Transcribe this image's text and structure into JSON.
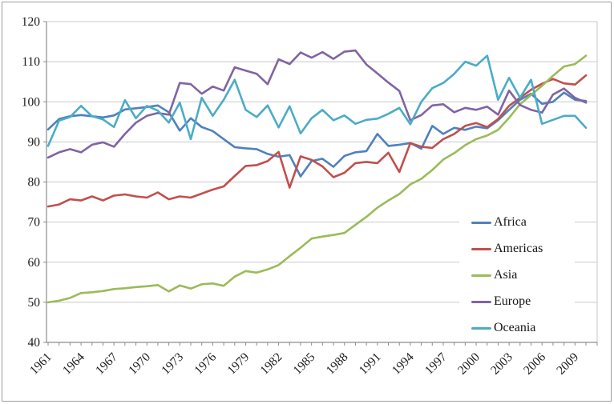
{
  "chart_data": {
    "type": "line",
    "title": "",
    "xlabel": "",
    "ylabel": "",
    "x": [
      1961,
      1962,
      1963,
      1964,
      1965,
      1966,
      1967,
      1968,
      1969,
      1970,
      1971,
      1972,
      1973,
      1974,
      1975,
      1976,
      1977,
      1978,
      1979,
      1980,
      1981,
      1982,
      1983,
      1984,
      1985,
      1986,
      1987,
      1988,
      1989,
      1990,
      1991,
      1992,
      1993,
      1994,
      1995,
      1996,
      1997,
      1998,
      1999,
      2000,
      2001,
      2002,
      2003,
      2004,
      2005,
      2006,
      2007,
      2008,
      2009,
      2010
    ],
    "xtick_labels": [
      "1961",
      "1964",
      "1967",
      "1970",
      "1973",
      "1976",
      "1979",
      "1982",
      "1985",
      "1988",
      "1991",
      "1994",
      "1997",
      "2000",
      "2003",
      "2006",
      "2009"
    ],
    "xtick_interval": 3,
    "ylim": [
      40,
      120
    ],
    "yticks": [
      40,
      50,
      60,
      70,
      80,
      90,
      100,
      110,
      120
    ],
    "grid": "horizontal",
    "legend_position": "inside-right",
    "colors": {
      "axis": "#8c8c8c",
      "grid": "#c9c9c9",
      "text": "#1a1a1a",
      "background": "#ffffff"
    },
    "series": [
      {
        "name": "Africa",
        "color": "#4F81BD",
        "values": [
          93.1,
          95.7,
          96.4,
          96.7,
          96.4,
          96.1,
          96.6,
          98.1,
          98.4,
          98.7,
          99.1,
          97.4,
          92.8,
          95.9,
          93.7,
          92.7,
          90.7,
          88.7,
          88.4,
          88.2,
          87.0,
          86.3,
          86.7,
          81.4,
          85.2,
          85.8,
          83.8,
          86.5,
          87.4,
          87.7,
          92.0,
          89.0,
          89.3,
          89.7,
          88.3,
          94.0,
          92.0,
          93.5,
          93.0,
          93.8,
          93.4,
          95.4,
          98.0,
          100.5,
          102.0,
          99.5,
          100.0,
          102.3,
          100.5,
          100.2
        ]
      },
      {
        "name": "Americas",
        "color": "#C0504D",
        "values": [
          73.9,
          74.4,
          75.7,
          75.4,
          76.4,
          75.4,
          76.6,
          76.9,
          76.4,
          76.1,
          77.4,
          75.7,
          76.4,
          76.1,
          77.1,
          78.1,
          78.9,
          81.5,
          84.0,
          84.2,
          85.2,
          87.5,
          78.6,
          86.4,
          85.5,
          83.9,
          81.2,
          82.3,
          84.7,
          85.0,
          84.7,
          87.3,
          82.5,
          89.7,
          88.8,
          88.5,
          90.7,
          92.0,
          94.0,
          94.7,
          93.7,
          95.7,
          99.0,
          101.0,
          103.0,
          104.5,
          105.7,
          104.6,
          104.3,
          106.6
        ]
      },
      {
        "name": "Asia",
        "color": "#9BBB59",
        "values": [
          50.0,
          50.4,
          51.1,
          52.3,
          52.5,
          52.8,
          53.3,
          53.5,
          53.8,
          54.0,
          54.3,
          52.7,
          54.2,
          53.4,
          54.5,
          54.7,
          54.1,
          56.4,
          57.8,
          57.4,
          58.2,
          59.3,
          61.5,
          63.6,
          65.9,
          66.4,
          66.8,
          67.3,
          69.3,
          71.3,
          73.6,
          75.4,
          77.0,
          79.4,
          80.8,
          83.0,
          85.6,
          87.2,
          89.2,
          90.7,
          91.6,
          93.0,
          96.0,
          99.4,
          101.7,
          104.0,
          106.5,
          108.8,
          109.4,
          111.5
        ]
      },
      {
        "name": "Europe",
        "color": "#8064A2",
        "values": [
          86.1,
          87.4,
          88.2,
          87.4,
          89.3,
          89.9,
          88.8,
          92.0,
          94.8,
          96.5,
          97.2,
          96.8,
          104.7,
          104.4,
          102.0,
          103.8,
          102.8,
          108.6,
          107.8,
          107.0,
          104.4,
          110.6,
          109.4,
          112.3,
          111.0,
          112.4,
          110.7,
          112.5,
          112.8,
          109.3,
          107.1,
          104.8,
          102.7,
          95.4,
          96.7,
          99.1,
          99.4,
          97.4,
          98.5,
          98.0,
          98.8,
          96.8,
          102.8,
          99.2,
          98.0,
          97.3,
          101.8,
          103.3,
          101.0,
          99.8
        ]
      },
      {
        "name": "Oceania",
        "color": "#4BACC6",
        "values": [
          89.0,
          95.3,
          96.2,
          99.0,
          96.4,
          95.6,
          93.7,
          100.4,
          95.9,
          99.0,
          97.8,
          94.8,
          99.8,
          90.7,
          101.0,
          96.5,
          100.5,
          105.5,
          98.0,
          96.2,
          99.1,
          93.6,
          98.9,
          92.1,
          95.9,
          98.0,
          95.4,
          96.6,
          94.5,
          95.5,
          95.8,
          97.0,
          98.5,
          94.4,
          100.0,
          103.4,
          104.7,
          107.0,
          110.0,
          109.0,
          111.5,
          100.5,
          106.0,
          101.0,
          105.5,
          94.5,
          95.5,
          96.5,
          96.5,
          93.5
        ]
      }
    ]
  }
}
